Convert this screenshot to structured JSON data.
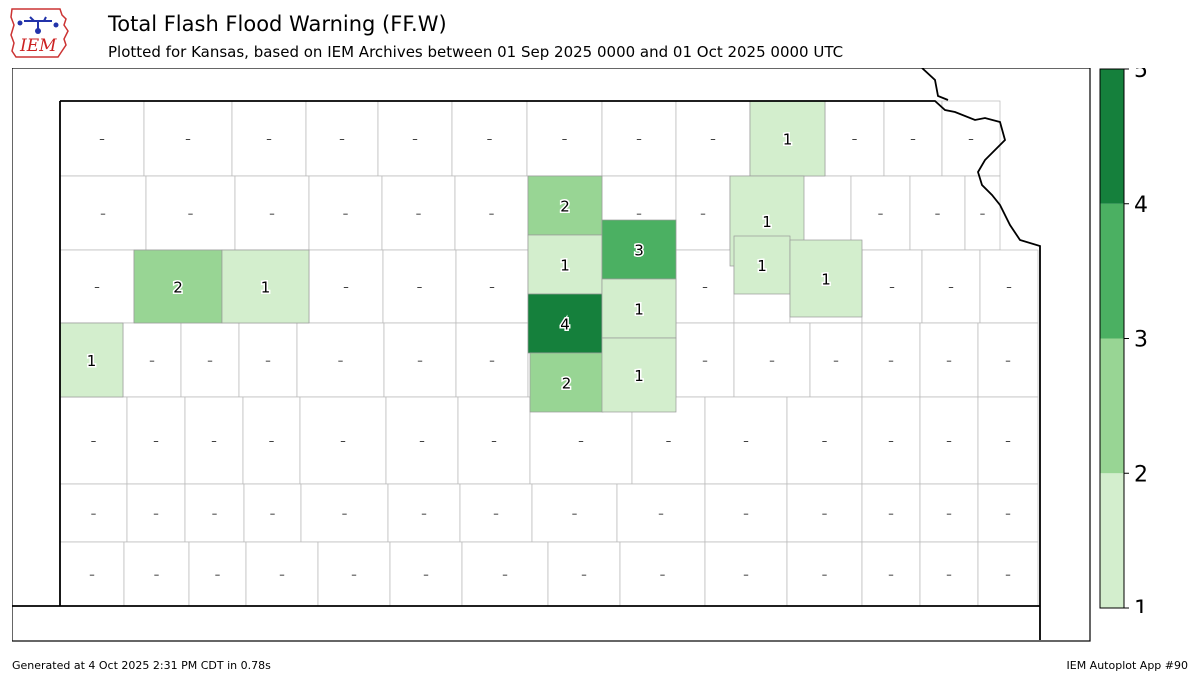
{
  "header": {
    "title": "Total Flash Flood Warning (FF.W)",
    "subtitle": "Plotted for Kansas, based on IEM Archives  between 01 Sep 2025 0000 and 01 Oct 2025 0000 UTC",
    "logo_text": "IEM"
  },
  "footer": {
    "generated": "Generated at 4 Oct 2025 2:31 PM CDT in 0.78s",
    "app": "IEM Autoplot App #90"
  },
  "colorbar": {
    "ticks": [
      "1",
      "2",
      "3",
      "4",
      "5"
    ],
    "colors": [
      "#d3eecd",
      "#98d594",
      "#4bb062",
      "#15803c"
    ]
  },
  "counties": [
    {
      "label": "1",
      "value": 1
    },
    {
      "label": "2",
      "value": 2
    },
    {
      "label": "1",
      "value": 1
    },
    {
      "label": "2",
      "value": 2
    },
    {
      "label": "1",
      "value": 1
    },
    {
      "label": "4",
      "value": 4
    },
    {
      "label": "2",
      "value": 2
    },
    {
      "label": "3",
      "value": 3
    },
    {
      "label": "1",
      "value": 1
    },
    {
      "label": "1",
      "value": 1
    },
    {
      "label": "1",
      "value": 1
    },
    {
      "label": "1",
      "value": 1
    },
    {
      "label": "1",
      "value": 1
    },
    {
      "label": "1",
      "value": 1
    }
  ],
  "zero_label": "–"
}
